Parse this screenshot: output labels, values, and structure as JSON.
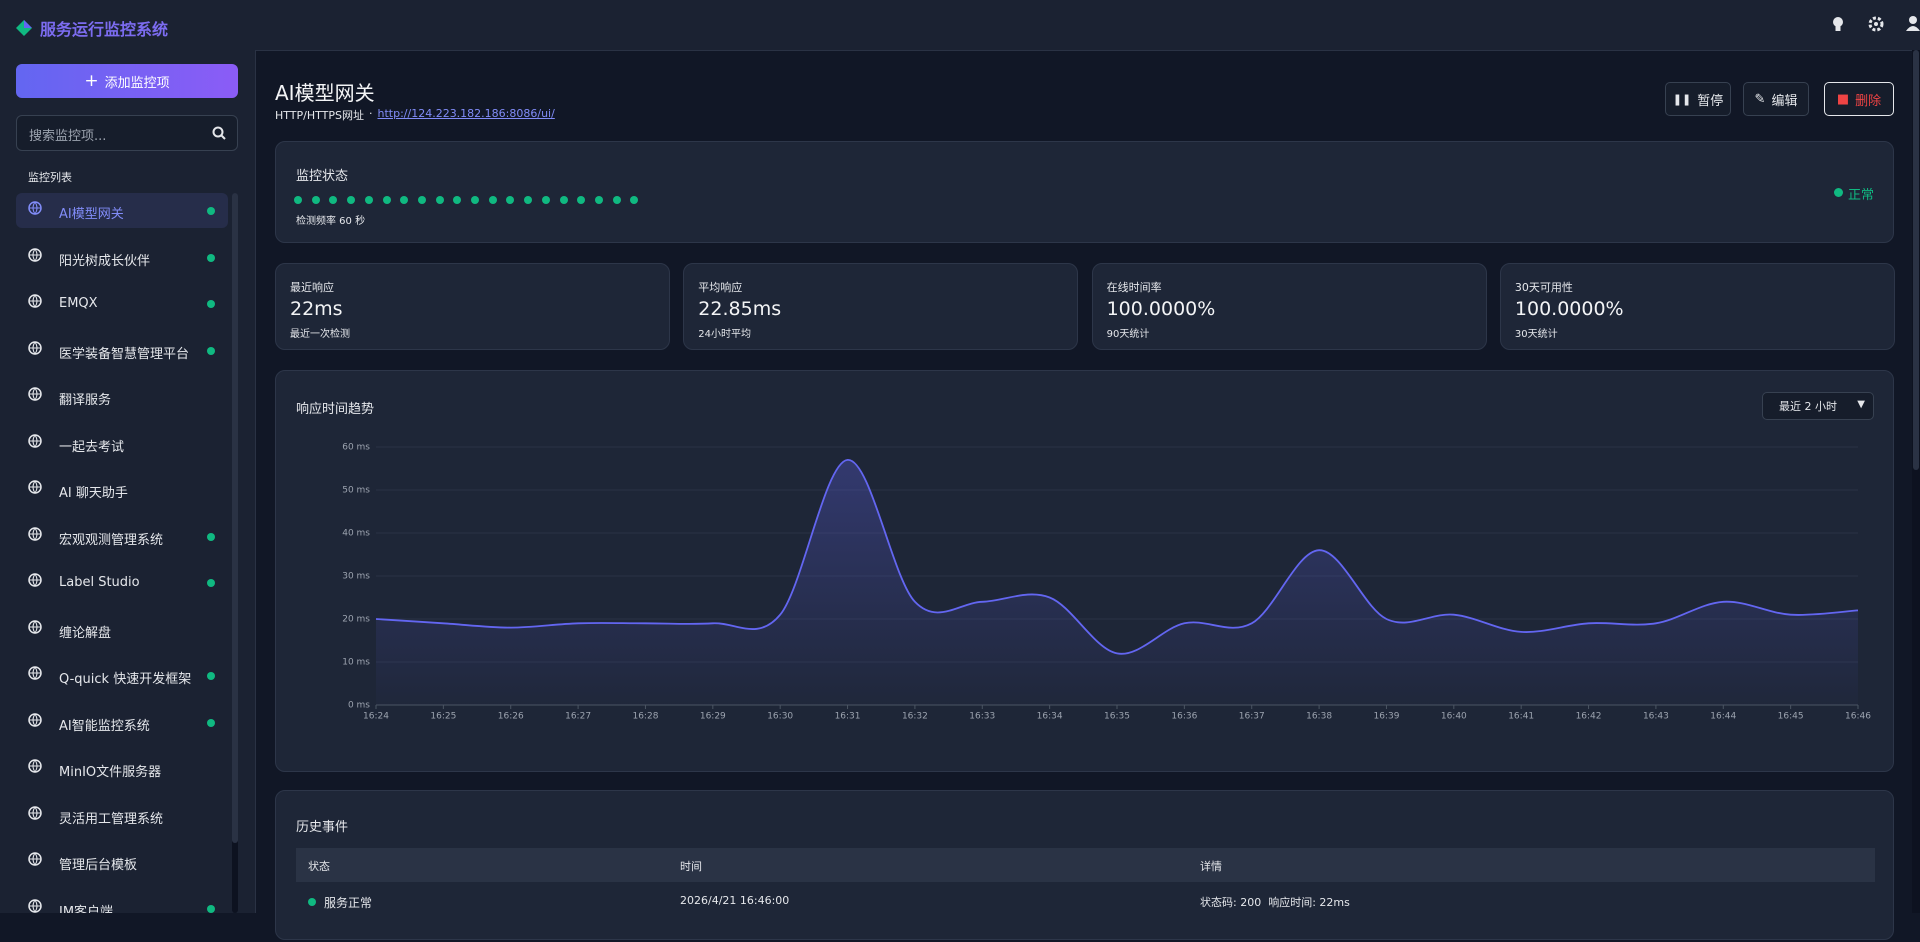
{
  "sidebar": {
    "brand": "服务运行监控系统",
    "add_button": "添加监控项",
    "search_placeholder": "搜索监控项...",
    "list_title": "监控列表",
    "items": [
      {
        "name": "AI模型网关",
        "online": true,
        "active": true
      },
      {
        "name": "阳光树成长伙伴",
        "online": true
      },
      {
        "name": "EMQX",
        "online": true
      },
      {
        "name": "医学装备智慧管理平台",
        "online": true
      },
      {
        "name": "翻译服务",
        "online": false
      },
      {
        "name": "一起去考试",
        "online": false
      },
      {
        "name": "AI 聊天助手",
        "online": false
      },
      {
        "name": "宏观观测管理系统",
        "online": true
      },
      {
        "name": "Label Studio",
        "online": true
      },
      {
        "name": "缠论解盘",
        "online": false
      },
      {
        "name": "Q-quick 快速开发框架",
        "online": true
      },
      {
        "name": "AI智能监控系统",
        "online": true
      },
      {
        "name": "MinIO文件服务器",
        "online": false
      },
      {
        "name": "灵活用工管理系统",
        "online": false
      },
      {
        "name": "管理后台模板",
        "online": false
      },
      {
        "name": "IM客户端",
        "online": true
      }
    ]
  },
  "header": {
    "title": "AI模型网关",
    "type": "HTTP/HTTPS网址",
    "separator": "·",
    "url": "http://124.223.182.186:8086/ui/",
    "buttons": [
      "暂停",
      "编辑",
      "删除"
    ]
  },
  "status": {
    "title": "监控状态",
    "heartbeats": [
      "#10b981",
      "#10b981",
      "#10b981",
      "#10b981",
      "#10b981",
      "#10b981",
      "#10b981",
      "#10b981",
      "#10b981",
      "#10b981",
      "#10b981",
      "#10b981",
      "#10b981",
      "#10b981",
      "#10b981",
      "#10b981",
      "#10b981",
      "#10b981",
      "#10b981",
      "#10b981"
    ],
    "interval": "检测频率 60 秒",
    "state": "正常",
    "state_color": "#10b981"
  },
  "stats": [
    {
      "label": "最近响应",
      "value": "22ms",
      "note": "最近一次检测"
    },
    {
      "label": "平均响应",
      "value": "22.85ms",
      "note": "24小时平均"
    },
    {
      "label": "在线时间率",
      "value": "100.0000%",
      "note": "90天统计"
    },
    {
      "label": "30天可用性",
      "value": "100.0000%",
      "note": "30天统计"
    }
  ],
  "chart_data": {
    "type": "line",
    "title": "响应时间趋势",
    "range_select": "最近 2 小时",
    "categories": [
      "16:24",
      "16:25",
      "16:26",
      "16:27",
      "16:28",
      "16:29",
      "16:30",
      "16:31",
      "16:32",
      "16:33",
      "16:34",
      "16:35",
      "16:36",
      "16:37",
      "16:38",
      "16:39",
      "16:40",
      "16:41",
      "16:42",
      "16:43",
      "16:44",
      "16:45",
      "16:46"
    ],
    "values": [
      20,
      19,
      18,
      19,
      19,
      19,
      21,
      57,
      24,
      24,
      25,
      12,
      19,
      19,
      36,
      20,
      21,
      17,
      19,
      19,
      24,
      21,
      22
    ],
    "color": "#6366f1",
    "ylim": [
      0,
      60
    ],
    "yticks": [
      {
        "value": 0,
        "label": "0 ms"
      },
      {
        "value": 10,
        "label": "10 ms"
      },
      {
        "value": 20,
        "label": "20 ms"
      },
      {
        "value": 30,
        "label": "30 ms"
      },
      {
        "value": 40,
        "label": "40 ms"
      },
      {
        "value": 50,
        "label": "50 ms"
      },
      {
        "value": 60,
        "label": "60 ms"
      }
    ],
    "grid": true
  },
  "history": {
    "title": "历史事件",
    "columns": [
      "状态",
      "时间",
      "详情"
    ],
    "rows": [
      {
        "status": "服务正常",
        "time": "2026/4/21 16:46:00",
        "detail": "状态码: 200  响应时间: 22ms"
      }
    ]
  }
}
